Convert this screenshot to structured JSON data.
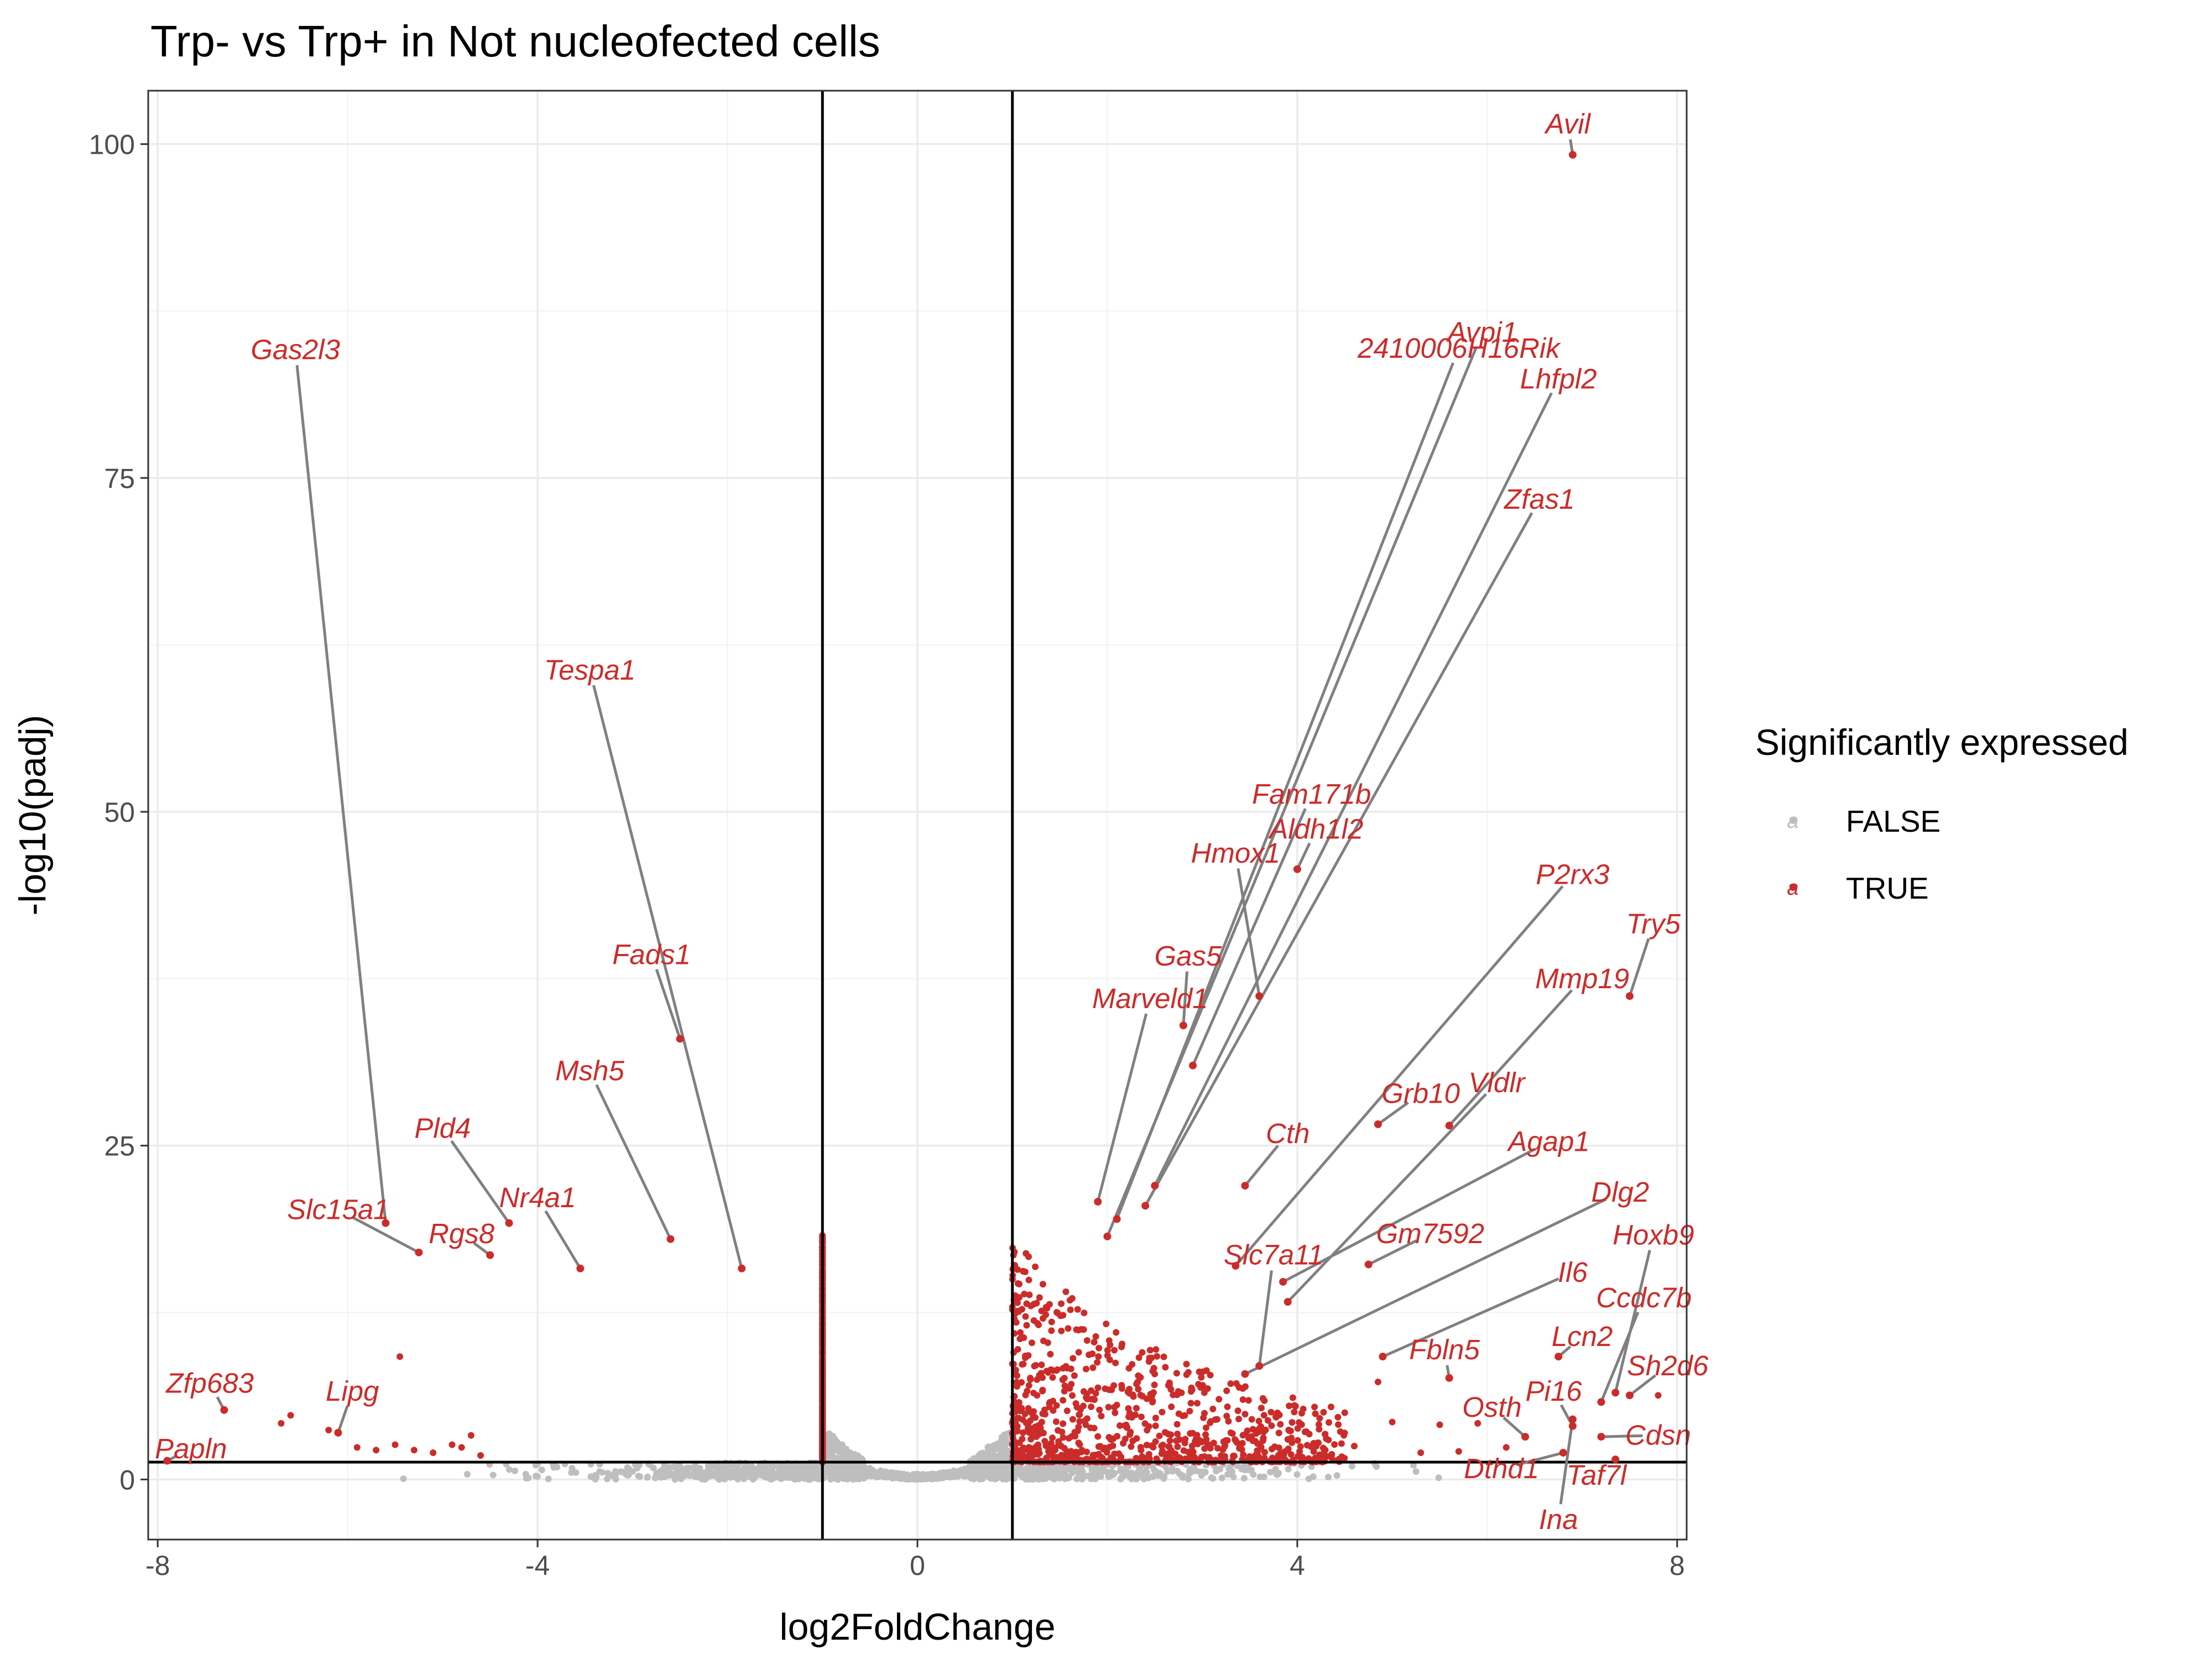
{
  "chart_data": {
    "type": "scatter",
    "title": "Trp- vs Trp+ in Not nucleofected cells",
    "xlabel": "log2FoldChange",
    "ylabel": "-log10(padj)",
    "xlim": [
      -8.1,
      8.1
    ],
    "ylim": [
      -4.5,
      104
    ],
    "x_ticks": [
      -8,
      -4,
      0,
      4,
      8
    ],
    "x_tick_labels": [
      "-8",
      "-4",
      "0",
      "4",
      "8"
    ],
    "y_ticks": [
      0,
      25,
      50,
      75,
      100
    ],
    "y_tick_labels": [
      "0",
      "25",
      "50",
      "75",
      "100"
    ],
    "grid": true,
    "reference_lines": {
      "vertical": [
        -1,
        1
      ],
      "horizontal": [
        1.3
      ]
    },
    "legend": {
      "title": "Significantly expressed",
      "position": "right",
      "entries": [
        {
          "label": "FALSE",
          "color": "#bebebe",
          "glyph": "a"
        },
        {
          "label": "TRUE",
          "color": "#cb2c2a",
          "glyph": "a"
        }
      ]
    },
    "colors": {
      "significant": "#cb2c2a",
      "not_significant": "#bebebe",
      "connector": "#808080"
    },
    "labeled_points": [
      {
        "gene": "Avil",
        "x": 6.9,
        "y": 99.2,
        "lx": 6.85,
        "ly": 101.5
      },
      {
        "gene": "Gas2l3",
        "x": -5.6,
        "y": 19.2,
        "lx": -6.55,
        "ly": 84.6
      },
      {
        "gene": "2410006H16Rik",
        "x": 2.1,
        "y": 19.5,
        "lx": 5.7,
        "ly": 84.7
      },
      {
        "gene": "Avpi1",
        "x": 2.0,
        "y": 18.2,
        "lx": 5.95,
        "ly": 85.9
      },
      {
        "gene": "Lhfpl2",
        "x": 2.5,
        "y": 22.0,
        "lx": 6.75,
        "ly": 82.4
      },
      {
        "gene": "Zfas1",
        "x": 2.4,
        "y": 20.5,
        "lx": 6.55,
        "ly": 73.4
      },
      {
        "gene": "Tespa1",
        "x": -1.85,
        "y": 15.8,
        "lx": -3.45,
        "ly": 60.6
      },
      {
        "gene": "Fam171b",
        "x": 2.9,
        "y": 31.0,
        "lx": 4.15,
        "ly": 51.3
      },
      {
        "gene": "Aldh1l2",
        "x": 4.0,
        "y": 45.7,
        "lx": 4.2,
        "ly": 48.7
      },
      {
        "gene": "Hmox1",
        "x": 3.6,
        "y": 36.2,
        "lx": 3.35,
        "ly": 46.9
      },
      {
        "gene": "P2rx3",
        "x": 3.35,
        "y": 16.0,
        "lx": 6.9,
        "ly": 45.3
      },
      {
        "gene": "Try5",
        "x": 7.5,
        "y": 36.2,
        "lx": 7.75,
        "ly": 41.6
      },
      {
        "gene": "Gas5",
        "x": 2.8,
        "y": 34.0,
        "lx": 2.85,
        "ly": 39.2
      },
      {
        "gene": "Mmp19",
        "x": 5.6,
        "y": 26.5,
        "lx": 7.0,
        "ly": 37.5
      },
      {
        "gene": "Marveld1",
        "x": 1.9,
        "y": 20.8,
        "lx": 2.45,
        "ly": 36.0
      },
      {
        "gene": "Fads1",
        "x": -2.5,
        "y": 33.0,
        "lx": -2.8,
        "ly": 39.3
      },
      {
        "gene": "Msh5",
        "x": -2.6,
        "y": 18.0,
        "lx": -3.45,
        "ly": 30.6
      },
      {
        "gene": "Grb10",
        "x": 4.85,
        "y": 26.6,
        "lx": 5.3,
        "ly": 28.9
      },
      {
        "gene": "Vldlr",
        "x": 3.9,
        "y": 13.3,
        "lx": 6.1,
        "ly": 29.7
      },
      {
        "gene": "Cth",
        "x": 3.45,
        "y": 22.0,
        "lx": 3.9,
        "ly": 25.9
      },
      {
        "gene": "Agap1",
        "x": 3.85,
        "y": 14.8,
        "lx": 6.65,
        "ly": 25.3
      },
      {
        "gene": "Pld4",
        "x": -4.3,
        "y": 19.2,
        "lx": -5.0,
        "ly": 26.3
      },
      {
        "gene": "Dlg2",
        "x": 3.45,
        "y": 7.9,
        "lx": 7.4,
        "ly": 21.5
      },
      {
        "gene": "Nr4a1",
        "x": -3.55,
        "y": 15.8,
        "lx": -4.0,
        "ly": 21.1
      },
      {
        "gene": "Slc15a1",
        "x": -5.25,
        "y": 17.0,
        "lx": -6.1,
        "ly": 20.2
      },
      {
        "gene": "Rgs8",
        "x": -4.5,
        "y": 16.8,
        "lx": -4.8,
        "ly": 18.4
      },
      {
        "gene": "Gm7592",
        "x": 4.75,
        "y": 16.1,
        "lx": 5.4,
        "ly": 18.4
      },
      {
        "gene": "Hoxb9",
        "x": 7.35,
        "y": 6.5,
        "lx": 7.75,
        "ly": 18.3
      },
      {
        "gene": "Slc7a11",
        "x": 3.6,
        "y": 8.5,
        "lx": 3.75,
        "ly": 16.8
      },
      {
        "gene": "Il6",
        "x": 4.9,
        "y": 9.2,
        "lx": 6.9,
        "ly": 15.5
      },
      {
        "gene": "Ccdc7b",
        "x": 7.2,
        "y": 5.8,
        "lx": 7.65,
        "ly": 13.6
      },
      {
        "gene": "Lcn2",
        "x": 6.75,
        "y": 9.2,
        "lx": 7.0,
        "ly": 10.7
      },
      {
        "gene": "Fbln5",
        "x": 5.6,
        "y": 7.6,
        "lx": 5.55,
        "ly": 9.7
      },
      {
        "gene": "Sh2d6",
        "x": 7.5,
        "y": 6.3,
        "lx": 7.9,
        "ly": 8.5
      },
      {
        "gene": "Pi16",
        "x": 6.9,
        "y": 4.0,
        "lx": 6.7,
        "ly": 6.6
      },
      {
        "gene": "Osth",
        "x": 6.4,
        "y": 3.2,
        "lx": 6.05,
        "ly": 5.4
      },
      {
        "gene": "Cdsn",
        "x": 7.2,
        "y": 3.2,
        "lx": 7.8,
        "ly": 3.3
      },
      {
        "gene": "Dthd1",
        "x": 6.8,
        "y": 2.0,
        "lx": 6.15,
        "ly": 0.8
      },
      {
        "gene": "Taf7l",
        "x": 7.35,
        "y": 1.5,
        "lx": 7.15,
        "ly": 0.3
      },
      {
        "gene": "Ina",
        "x": 6.9,
        "y": 4.5,
        "lx": 6.75,
        "ly": -3.0
      },
      {
        "gene": "Zfp683",
        "x": -7.3,
        "y": 5.2,
        "lx": -7.45,
        "ly": 7.2
      },
      {
        "gene": "Lipg",
        "x": -6.1,
        "y": 3.5,
        "lx": -5.95,
        "ly": 6.6
      },
      {
        "gene": "Papln",
        "x": -7.9,
        "y": 1.4,
        "lx": -7.65,
        "ly": 2.3
      }
    ],
    "extra_significant_points": [
      [
        7.8,
        6.3
      ],
      [
        5.5,
        4.1
      ],
      [
        3.9,
        3.0
      ],
      [
        4.85,
        7.3
      ],
      [
        5.0,
        4.3
      ],
      [
        4.5,
        5.0
      ],
      [
        5.3,
        2.0
      ],
      [
        5.7,
        2.1
      ],
      [
        4.6,
        2.5
      ],
      [
        3.6,
        3.8
      ],
      [
        3.3,
        3.5
      ],
      [
        4.2,
        2.5
      ],
      [
        3.8,
        1.8
      ],
      [
        5.9,
        4.2
      ],
      [
        6.2,
        2.4
      ],
      [
        -6.6,
        4.8
      ],
      [
        -6.7,
        4.2
      ],
      [
        -6.2,
        3.7
      ],
      [
        -5.9,
        2.4
      ],
      [
        -5.7,
        2.2
      ],
      [
        -5.5,
        2.6
      ],
      [
        -5.1,
        2.0
      ],
      [
        -4.8,
        2.4
      ],
      [
        -4.6,
        1.8
      ],
      [
        -5.45,
        9.2
      ],
      [
        -4.7,
        3.3
      ],
      [
        -4.9,
        2.6
      ],
      [
        -5.3,
        2.2
      ]
    ],
    "density_clouds": {
      "negative": {
        "x_range": [
          -4.5,
          -1.0
        ],
        "y_max_at_threshold": 15.0,
        "n_points": 950
      },
      "positive": {
        "x_range": [
          1.0,
          4.5
        ],
        "y_max_at_threshold": 15.0,
        "n_points": 850
      },
      "nonsignificant": {
        "x_range": [
          -6.8,
          6.8
        ],
        "n_points": 1500
      }
    }
  }
}
